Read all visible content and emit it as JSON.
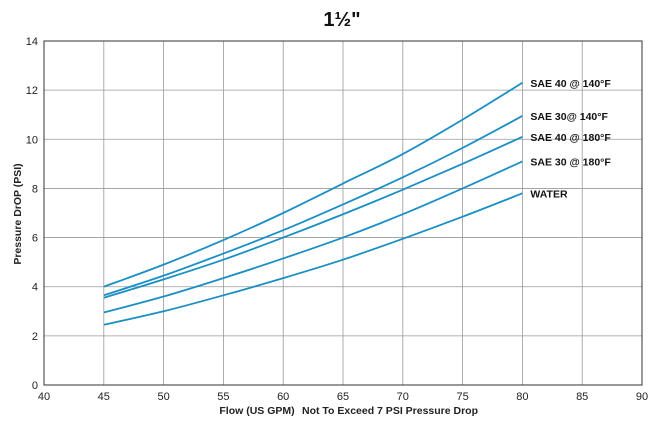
{
  "chart_data": {
    "type": "line",
    "title": "1½\"",
    "xlabel": "Flow (US GPM)",
    "xlabel_note": "Not To Exceed 7 PSI Pressure Drop",
    "ylabel": "Pressure DrOP (PSI)",
    "xlim": [
      40,
      90
    ],
    "ylim": [
      0,
      14
    ],
    "xticks": [
      40,
      45,
      50,
      55,
      60,
      65,
      70,
      75,
      80,
      85,
      90
    ],
    "yticks": [
      0,
      2,
      4,
      6,
      8,
      10,
      12,
      14
    ],
    "grid": true,
    "line_color": "#1a8fc4",
    "series": [
      {
        "name": "SAE 40 @ 140°F",
        "x": [
          45,
          50,
          55,
          60,
          65,
          70,
          75,
          80
        ],
        "y": [
          4.0,
          4.9,
          5.9,
          7.0,
          8.2,
          9.4,
          10.8,
          12.3
        ]
      },
      {
        "name": "SAE 30@ 140°F",
        "x": [
          45,
          50,
          55,
          60,
          65,
          70,
          75,
          80
        ],
        "y": [
          3.65,
          4.45,
          5.35,
          6.3,
          7.35,
          8.45,
          9.65,
          10.95
        ]
      },
      {
        "name": "SAE 40 @ 180°F",
        "x": [
          45,
          50,
          55,
          60,
          65,
          70,
          75,
          80
        ],
        "y": [
          3.55,
          4.3,
          5.1,
          6.0,
          6.95,
          7.95,
          9.0,
          10.1
        ]
      },
      {
        "name": "SAE 30 @ 180°F",
        "x": [
          45,
          50,
          55,
          60,
          65,
          70,
          75,
          80
        ],
        "y": [
          2.95,
          3.6,
          4.35,
          5.15,
          6.0,
          6.95,
          8.0,
          9.1
        ]
      },
      {
        "name": "WATER",
        "x": [
          45,
          50,
          55,
          60,
          65,
          70,
          75,
          80
        ],
        "y": [
          2.45,
          3.0,
          3.65,
          4.35,
          5.1,
          5.95,
          6.85,
          7.8
        ]
      }
    ]
  }
}
